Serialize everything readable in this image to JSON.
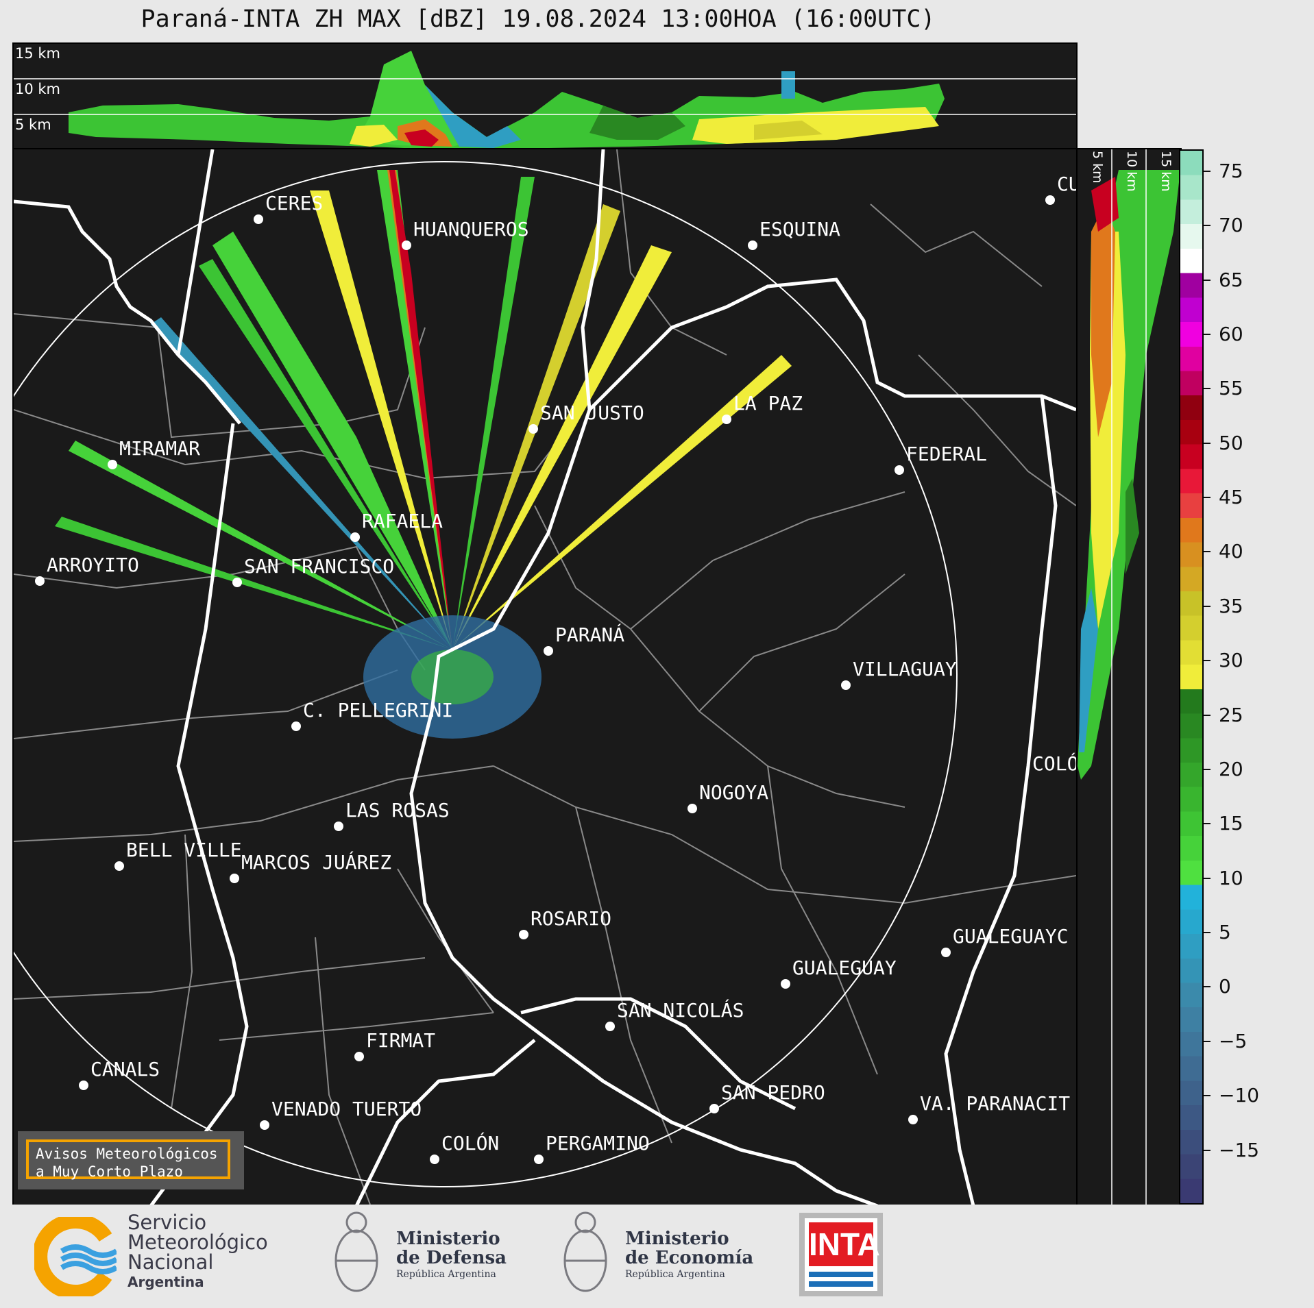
{
  "title": "Paraná-INTA ZH MAX [dBZ] 19.08.2024 13:00HOA (16:00UTC)",
  "top_panel": {
    "height_labels": [
      "15 km",
      "10 km",
      "5 km"
    ]
  },
  "side_panel": {
    "height_labels": [
      "5 km",
      "10 km",
      "15 km"
    ]
  },
  "colorbar": {
    "unit": "dBZ",
    "range": [
      -20,
      77
    ],
    "ticks": [
      "75",
      "70",
      "65",
      "60",
      "55",
      "50",
      "45",
      "40",
      "35",
      "30",
      "25",
      "20",
      "15",
      "10",
      "5",
      "0",
      "−5",
      "−10",
      "−15"
    ],
    "colors": [
      "#3a3a72",
      "#3b4475",
      "#3c4e7c",
      "#3d5884",
      "#3e628b",
      "#3f6c93",
      "#3f769b",
      "#3e80a3",
      "#3b8aab",
      "#3494b6",
      "#2f9ec2",
      "#27a8ce",
      "#22b2da",
      "#4fe040",
      "#46d23a",
      "#3ec434",
      "#39b52f",
      "#34a62b",
      "#2e9726",
      "#298822",
      "#237a1d",
      "#f0ed3a",
      "#e2de34",
      "#d4cf2e",
      "#c8c228",
      "#d4a824",
      "#d89020",
      "#e0781c",
      "#e84040",
      "#e81838",
      "#c80020",
      "#a80010",
      "#900010",
      "#c00060",
      "#e000a0",
      "#f000e0",
      "#c000d0",
      "#a000a0",
      "#ffffff",
      "#e6f8ee",
      "#c4eedc",
      "#a8e6ca",
      "#8cdcbc"
    ]
  },
  "radar": {
    "name": "Paraná-INTA",
    "range_ring_km": 240
  },
  "cities": [
    {
      "name": "CERES"
    },
    {
      "name": "HUANQUEROS"
    },
    {
      "name": "ESQUINA"
    },
    {
      "name": "CU"
    },
    {
      "name": "SAN JUSTO"
    },
    {
      "name": "LA PAZ"
    },
    {
      "name": "MIRAMAR"
    },
    {
      "name": "FEDERAL"
    },
    {
      "name": "RAFAELA"
    },
    {
      "name": "ARROYITO"
    },
    {
      "name": "SAN FRANCISCO"
    },
    {
      "name": "PARANÁ"
    },
    {
      "name": "VILLAGUAY"
    },
    {
      "name": "C. PELLEGRINI"
    },
    {
      "name": "COLÓ"
    },
    {
      "name": "NOGOYA"
    },
    {
      "name": "LAS ROSAS"
    },
    {
      "name": "BELL VILLE"
    },
    {
      "name": "MARCOS JUÁREZ"
    },
    {
      "name": "ROSARIO"
    },
    {
      "name": "GUALEGUAYC"
    },
    {
      "name": "GUALEGUAY"
    },
    {
      "name": "SAN NICOLÁS"
    },
    {
      "name": "FIRMAT"
    },
    {
      "name": "CANALS"
    },
    {
      "name": "SAN PEDRO"
    },
    {
      "name": "VENADO TUERTO"
    },
    {
      "name": "VA. PARANACIT"
    },
    {
      "name": "COLÓN"
    },
    {
      "name": "PERGAMINO"
    }
  ],
  "warning_box": {
    "line1": "Avisos Meteorológicos",
    "line2": "a Muy Corto Plazo"
  },
  "footer": {
    "smn": {
      "line1": "Servicio",
      "line2": "Meteorológico",
      "line3": "Nacional",
      "line4": "Argentina"
    },
    "defensa": {
      "line1": "Ministerio",
      "line2": "de Defensa",
      "line3": "República Argentina"
    },
    "economia": {
      "line1": "Ministerio",
      "line2": "de Economía",
      "line3": "República Argentina"
    },
    "inta": {
      "label": "INTA"
    }
  }
}
